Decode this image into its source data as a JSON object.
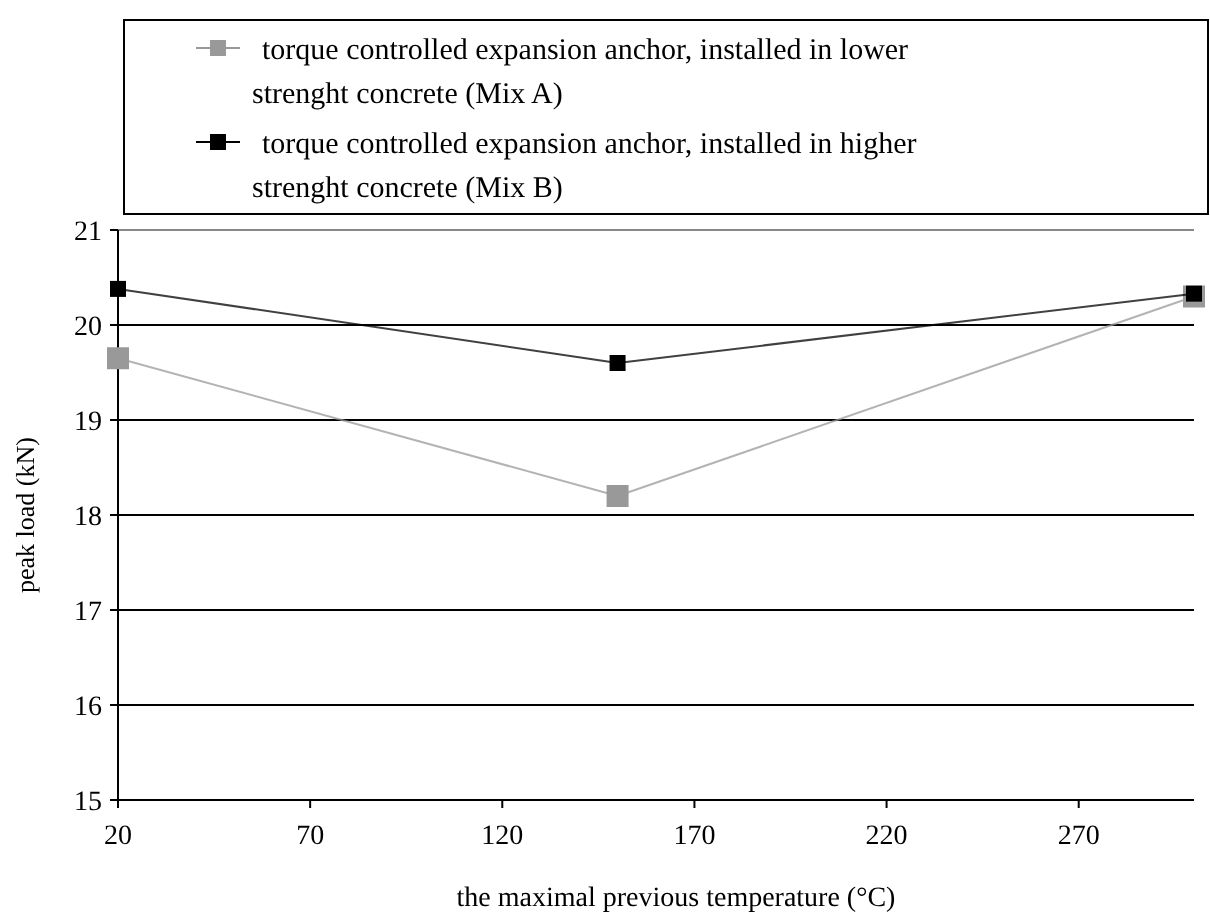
{
  "chart_data": {
    "type": "line",
    "xlabel": "the maximal previous temperature (°C)",
    "ylabel": "peak load (kN)",
    "x": [
      20,
      150,
      300
    ],
    "series": [
      {
        "name": "torque controlled expansion anchor, installed in lower strenght concrete (Mix A)",
        "color": "#999999",
        "values": [
          19.65,
          18.2,
          20.3
        ]
      },
      {
        "name": "torque controlled expansion anchor, installed in higher strenght concrete (Mix B)",
        "color": "#000000",
        "values": [
          20.38,
          19.6,
          20.33
        ]
      }
    ],
    "xlim": [
      20,
      300
    ],
    "xticks": [
      20,
      70,
      120,
      170,
      220,
      270
    ],
    "ylim": [
      15,
      21
    ],
    "yticks": [
      15,
      16,
      17,
      18,
      19,
      20,
      21
    ],
    "grid": "y",
    "legend": "top",
    "marker": "square",
    "line_style": "solid"
  }
}
